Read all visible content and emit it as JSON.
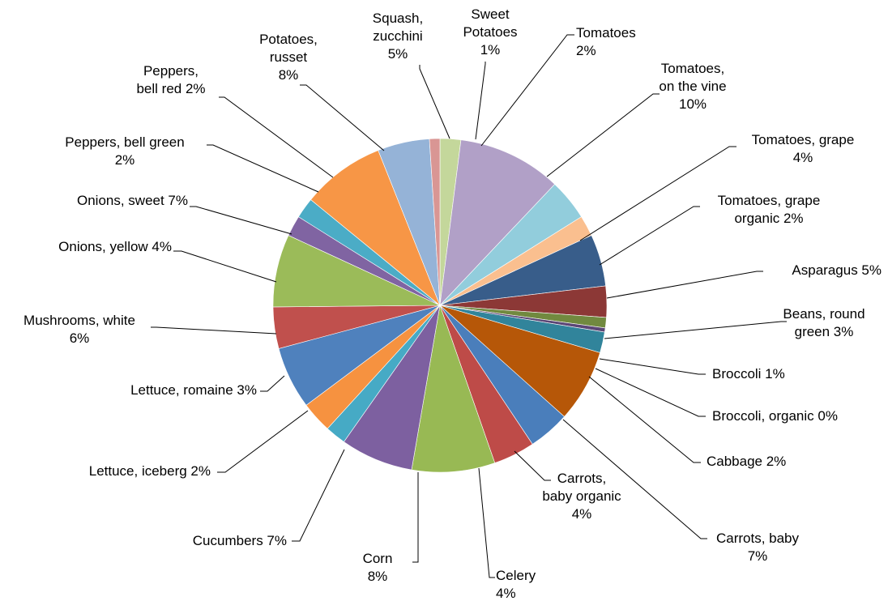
{
  "chart_data": {
    "type": "pie",
    "title": "",
    "start_angle_deg": 0,
    "direction": "clockwise",
    "slices": [
      {
        "name": "Tomatoes",
        "lines": [
          "Tomatoes",
          "2%"
        ],
        "value": 2,
        "color": "#C4D79B"
      },
      {
        "name": "Tomatoes, on the vine",
        "lines": [
          "Tomatoes,",
          "on the vine",
          "10%"
        ],
        "value": 10,
        "color": "#B1A0C7"
      },
      {
        "name": "Tomatoes, grape",
        "lines": [
          "Tomatoes, grape",
          "4%"
        ],
        "value": 4,
        "color": "#92CDDC"
      },
      {
        "name": "Tomatoes, grape organic",
        "lines": [
          "Tomatoes, grape",
          "organic  2%"
        ],
        "value": 2,
        "color": "#FABF8F"
      },
      {
        "name": "Asparagus",
        "lines": [
          "Asparagus 5%"
        ],
        "value": 5,
        "color": "#385D8A"
      },
      {
        "name": "Beans, round green",
        "lines": [
          "Beans, round",
          "green 3%"
        ],
        "value": 3,
        "color": "#8C3836"
      },
      {
        "name": "Broccoli",
        "lines": [
          "Broccoli 1%"
        ],
        "value": 1,
        "color": "#71893F"
      },
      {
        "name": "Broccoli, organic",
        "lines": [
          "Broccoli, organic 0%"
        ],
        "value": 0.4,
        "color": "#5C4776"
      },
      {
        "name": "Cabbage",
        "lines": [
          "Cabbage 2%"
        ],
        "value": 2,
        "color": "#31849B"
      },
      {
        "name": "Carrots, baby",
        "lines": [
          "Carrots, baby",
          "7%"
        ],
        "value": 7,
        "color": "#B65708"
      },
      {
        "name": "Carrots, baby organic",
        "lines": [
          "Carrots,",
          "baby organic",
          "4%"
        ],
        "value": 4,
        "color": "#4A7EBB"
      },
      {
        "name": "Celery",
        "lines": [
          "Celery",
          "4%"
        ],
        "value": 4,
        "color": "#BE4B48"
      },
      {
        "name": "Corn",
        "lines": [
          "Corn",
          "8%"
        ],
        "value": 8,
        "color": "#98B954"
      },
      {
        "name": "Cucumbers",
        "lines": [
          "Cucumbers 7%"
        ],
        "value": 7,
        "color": "#7D60A0"
      },
      {
        "name": "Lettuce, iceberg",
        "lines": [
          "Lettuce, iceberg 2%"
        ],
        "value": 2,
        "color": "#46AAC5"
      },
      {
        "name": "Lettuce, romaine",
        "lines": [
          "Lettuce, romaine 3%"
        ],
        "value": 3,
        "color": "#F69240"
      },
      {
        "name": "Mushrooms, white",
        "lines": [
          "Mushrooms, white",
          "6%"
        ],
        "value": 6,
        "color": "#4F81BD"
      },
      {
        "name": "Onions, yellow",
        "lines": [
          "Onions, yellow 4%"
        ],
        "value": 4,
        "color": "#C0504D"
      },
      {
        "name": "Onions, sweet",
        "lines": [
          "Onions, sweet 7%"
        ],
        "value": 7,
        "color": "#9BBB59"
      },
      {
        "name": "Peppers, bell green",
        "lines": [
          "Peppers, bell green",
          "2%"
        ],
        "value": 2,
        "color": "#8064A2"
      },
      {
        "name": "Peppers, bell red",
        "lines": [
          "Peppers,",
          "bell red 2%"
        ],
        "value": 2,
        "color": "#4BACC6"
      },
      {
        "name": "Potatoes, russet",
        "lines": [
          "Potatoes,",
          "russet",
          "8%"
        ],
        "value": 8,
        "color": "#F79646"
      },
      {
        "name": "Squash, zucchini",
        "lines": [
          "Squash,",
          "zucchini",
          "5%"
        ],
        "value": 5,
        "color": "#95B3D7"
      },
      {
        "name": "Sweet Potatoes",
        "lines": [
          "Sweet",
          "Potatoes",
          "1%"
        ],
        "value": 1,
        "color": "#D99694"
      }
    ]
  }
}
